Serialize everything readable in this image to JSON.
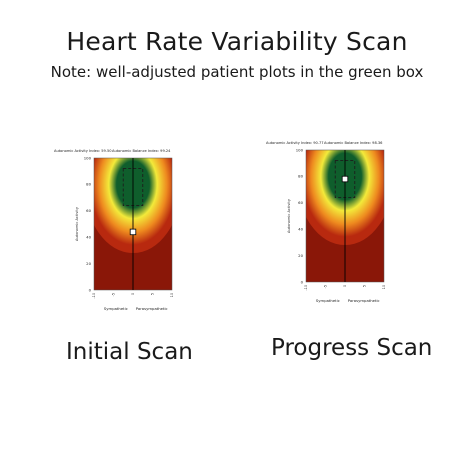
{
  "header": {
    "title": "Heart Rate Variability Scan",
    "subtitle": "Note: well-adjusted patient plots in the green box"
  },
  "colors": {
    "green_zone": "#0f5e2c",
    "yellow": "#f3ea3a",
    "orange": "#ee8a1f",
    "red": "#b8290f",
    "deep_red": "#8a1708"
  },
  "chart_data": [
    {
      "type": "heatmap",
      "caption": "Initial Scan",
      "top_left_label": "Autonomic Activity Index: 59.50",
      "top_right_label": "Autonomic Balance Index: 99.24",
      "ylabel": "Autonomic Activity",
      "ylim": [
        0,
        100
      ],
      "yticks": [
        100,
        80,
        60,
        40,
        20,
        0
      ],
      "xlim": [
        -10,
        10
      ],
      "xticks": [
        -10,
        -5,
        0,
        5,
        10
      ],
      "x_left_label": "Sympathetic",
      "x_right_label": "Parasympathetic",
      "patient_point": {
        "x": 0,
        "y": 44
      },
      "green_box": {
        "x": [
          -2.5,
          2.5
        ],
        "y": [
          64,
          92
        ]
      }
    },
    {
      "type": "heatmap",
      "caption": "Progress Scan",
      "top_left_label": "Autonomic Activity Index: 90.77",
      "top_right_label": "Autonomic Balance Index: 98.36",
      "ylabel": "Autonomic Activity",
      "ylim": [
        0,
        100
      ],
      "yticks": [
        100,
        80,
        60,
        40,
        20,
        0
      ],
      "xlim": [
        -10,
        10
      ],
      "xticks": [
        -10,
        -5,
        0,
        5,
        10
      ],
      "x_left_label": "Sympathetic",
      "x_right_label": "Parasympathetic",
      "patient_point": {
        "x": 0,
        "y": 78
      },
      "green_box": {
        "x": [
          -2.5,
          2.5
        ],
        "y": [
          64,
          92
        ]
      }
    }
  ]
}
